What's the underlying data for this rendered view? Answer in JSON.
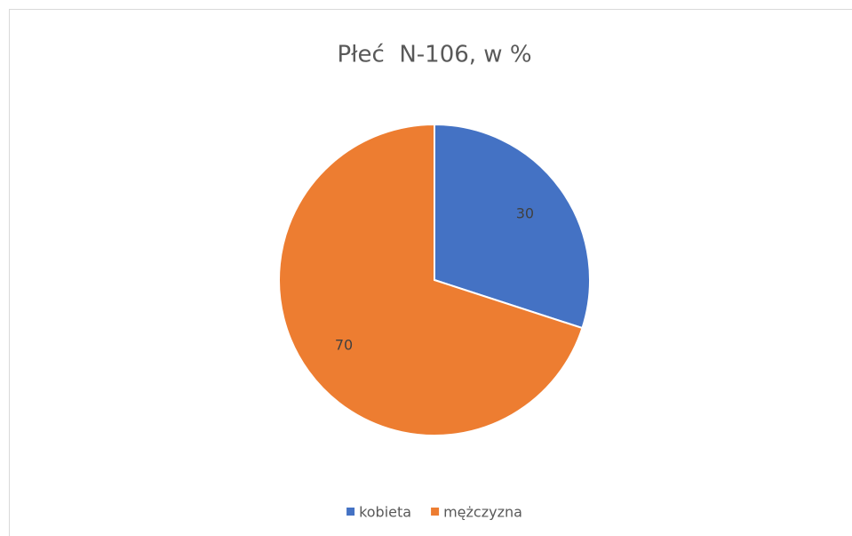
{
  "chart_data": {
    "type": "pie",
    "title": "Płeć  N-106, w %",
    "categories": [
      "kobieta",
      "mężczyzna"
    ],
    "values": [
      30,
      70
    ],
    "colors": [
      "#4472c4",
      "#ed7d31"
    ],
    "legend": "bottom"
  }
}
